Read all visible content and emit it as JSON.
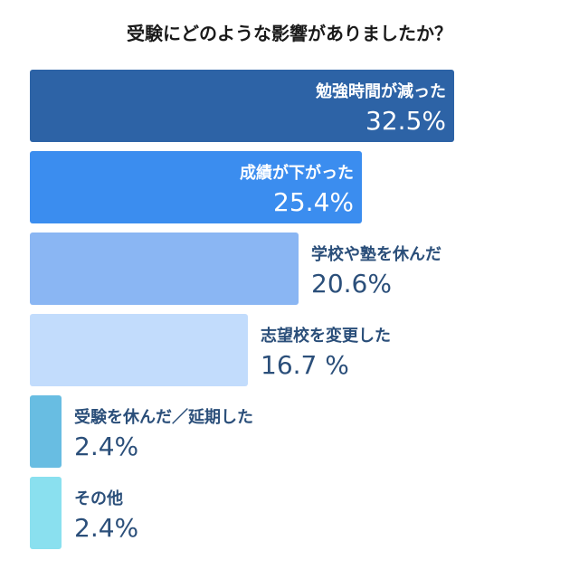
{
  "chart_data": {
    "type": "bar",
    "orientation": "horizontal",
    "title": "受験にどのような影響がありましたか？",
    "categories": [
      "勉強時間が減った",
      "成績が下がった",
      "学校や塾を休んだ",
      "志望校を変更した",
      "受験を休んだ／延期した",
      "その他"
    ],
    "values": [
      32.5,
      25.4,
      20.6,
      16.7,
      2.4,
      2.4
    ],
    "value_labels": [
      "32.5%",
      "25.4%",
      "20.6%",
      "16.7 %",
      "2.4%",
      "2.4%"
    ],
    "colors": [
      "#2d63a6",
      "#3b8def",
      "#8ab6f3",
      "#c2dcfc",
      "#68bde2",
      "#8ae0ef"
    ],
    "xlim": [
      0,
      32.5
    ],
    "grid": false,
    "legend": "none"
  },
  "colors": {
    "label_inside": "#ffffff",
    "label_outside": "#2b4f7a",
    "title": "#1a1a1a"
  }
}
